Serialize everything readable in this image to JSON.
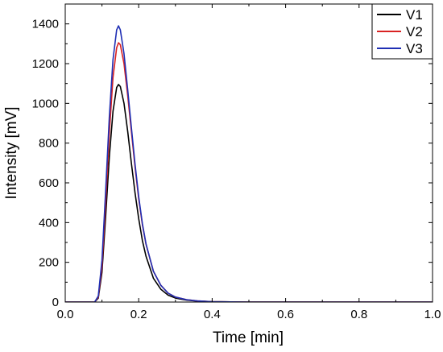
{
  "chart_data": {
    "type": "line",
    "title": "",
    "xlabel": "Time [min]",
    "ylabel": "Intensity [mV]",
    "xlim": [
      0.0,
      1.0
    ],
    "ylim": [
      0,
      1500
    ],
    "x_ticks": [
      0.0,
      0.2,
      0.4,
      0.6,
      0.8,
      1.0
    ],
    "x_tick_labels": [
      "0.0",
      "0.2",
      "0.4",
      "0.6",
      "0.8",
      "1.0"
    ],
    "y_ticks": [
      0,
      200,
      400,
      600,
      800,
      1000,
      1200,
      1400
    ],
    "y_tick_labels": [
      "0",
      "200",
      "400",
      "600",
      "800",
      "1000",
      "1200",
      "1400"
    ],
    "grid": false,
    "legend_position": "top-right",
    "series": [
      {
        "name": "V1",
        "color": "#000000",
        "x": [
          0.0,
          0.08,
          0.09,
          0.1,
          0.11,
          0.12,
          0.13,
          0.14,
          0.145,
          0.15,
          0.16,
          0.17,
          0.18,
          0.19,
          0.2,
          0.21,
          0.22,
          0.24,
          0.26,
          0.28,
          0.3,
          0.33,
          0.36,
          0.4,
          0.45,
          0.5,
          1.0
        ],
        "y": [
          0,
          0,
          20,
          150,
          430,
          730,
          960,
          1080,
          1095,
          1085,
          1000,
          860,
          700,
          550,
          420,
          310,
          230,
          120,
          65,
          35,
          20,
          10,
          5,
          2,
          1,
          0,
          0
        ]
      },
      {
        "name": "V2",
        "color": "#d92323",
        "x": [
          0.0,
          0.08,
          0.09,
          0.1,
          0.11,
          0.12,
          0.13,
          0.14,
          0.145,
          0.15,
          0.16,
          0.17,
          0.18,
          0.19,
          0.2,
          0.21,
          0.22,
          0.24,
          0.26,
          0.28,
          0.3,
          0.33,
          0.36,
          0.4,
          0.45,
          0.5,
          1.0
        ],
        "y": [
          0,
          0,
          25,
          180,
          500,
          850,
          1130,
          1280,
          1305,
          1295,
          1200,
          1040,
          860,
          680,
          520,
          390,
          290,
          155,
          85,
          45,
          25,
          12,
          6,
          2,
          1,
          0,
          0
        ]
      },
      {
        "name": "V3",
        "color": "#1f2fb4",
        "x": [
          0.0,
          0.08,
          0.09,
          0.1,
          0.11,
          0.12,
          0.13,
          0.14,
          0.145,
          0.15,
          0.16,
          0.17,
          0.18,
          0.19,
          0.2,
          0.21,
          0.22,
          0.24,
          0.26,
          0.28,
          0.3,
          0.33,
          0.36,
          0.4,
          0.45,
          0.5,
          1.0
        ],
        "y": [
          0,
          0,
          30,
          210,
          560,
          930,
          1220,
          1370,
          1390,
          1370,
          1250,
          1070,
          880,
          695,
          530,
          395,
          292,
          155,
          85,
          45,
          25,
          12,
          6,
          2,
          1,
          0,
          0
        ]
      }
    ]
  }
}
